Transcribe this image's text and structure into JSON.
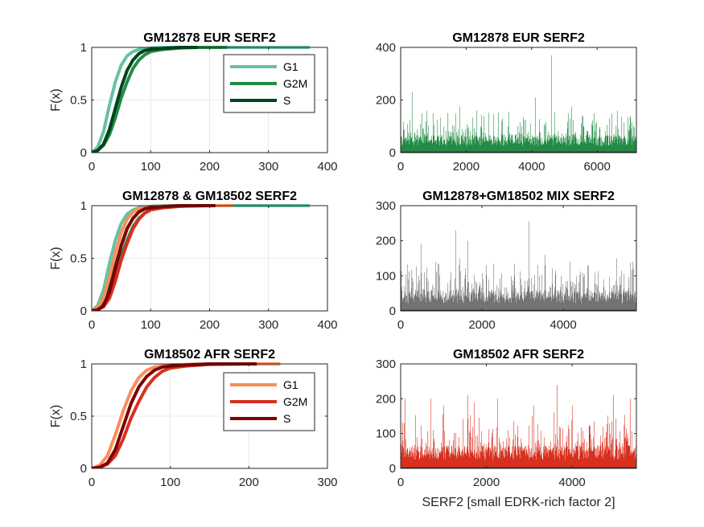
{
  "chart_data": [
    {
      "type": "line",
      "title": "GM12878 EUR SERF2",
      "xlabel": "",
      "ylabel": "F(x)",
      "xlim": [
        0,
        400
      ],
      "ylim": [
        0,
        1
      ],
      "xticks": [
        0,
        100,
        200,
        300,
        400
      ],
      "yticks": [
        0,
        0.5,
        1
      ],
      "ytick_labels": [
        "0",
        "0.5",
        "1"
      ],
      "grid": true,
      "legend": "top-right",
      "series": [
        {
          "name": "G1",
          "color": "#66c2a4",
          "x": [
            0,
            10,
            20,
            30,
            40,
            50,
            60,
            70,
            80,
            100,
            120,
            150,
            200,
            370
          ],
          "y": [
            0,
            0.05,
            0.2,
            0.45,
            0.67,
            0.83,
            0.92,
            0.96,
            0.98,
            0.995,
            1,
            1,
            1,
            1
          ]
        },
        {
          "name": "G2M",
          "color": "#238b45",
          "x": [
            0,
            10,
            20,
            30,
            40,
            50,
            60,
            70,
            80,
            90,
            100,
            120,
            150,
            180,
            230
          ],
          "y": [
            0,
            0.02,
            0.07,
            0.17,
            0.33,
            0.52,
            0.67,
            0.8,
            0.88,
            0.93,
            0.96,
            0.98,
            0.995,
            1,
            1
          ]
        },
        {
          "name": "S",
          "color": "#00441b",
          "x": [
            0,
            10,
            20,
            30,
            40,
            50,
            60,
            70,
            80,
            90,
            100,
            120,
            150,
            180
          ],
          "y": [
            0,
            0.02,
            0.08,
            0.22,
            0.42,
            0.62,
            0.78,
            0.88,
            0.94,
            0.97,
            0.98,
            0.99,
            1,
            1
          ]
        }
      ]
    },
    {
      "type": "bar",
      "title": "GM12878 EUR SERF2",
      "xlabel": "",
      "ylabel": "",
      "xlim": [
        0,
        7200
      ],
      "ylim": [
        0,
        400
      ],
      "xticks": [
        0,
        2000,
        4000,
        6000
      ],
      "yticks": [
        0,
        200,
        400
      ],
      "color": "#238b45",
      "n": 7200,
      "base_mean": 45,
      "spikes": [
        [
          0,
          400
        ],
        [
          350,
          230
        ],
        [
          650,
          150
        ],
        [
          1800,
          175
        ],
        [
          2300,
          160
        ],
        [
          3300,
          155
        ],
        [
          4100,
          210
        ],
        [
          4600,
          370
        ],
        [
          5100,
          150
        ],
        [
          5200,
          175
        ],
        [
          5900,
          150
        ],
        [
          6450,
          150
        ],
        [
          6600,
          160
        ],
        [
          7000,
          140
        ]
      ]
    },
    {
      "type": "line",
      "title": "GM12878 & GM18502 SERF2",
      "xlabel": "",
      "ylabel": "F(x)",
      "xlim": [
        0,
        400
      ],
      "ylim": [
        0,
        1
      ],
      "xticks": [
        0,
        100,
        200,
        300,
        400
      ],
      "yticks": [
        0,
        0.5,
        1
      ],
      "ytick_labels": [
        "0",
        "0.5",
        "1"
      ],
      "grid": true,
      "series": [
        {
          "color": "#66c2a4",
          "x": [
            0,
            10,
            20,
            30,
            40,
            50,
            60,
            70,
            80,
            100,
            120,
            150,
            200,
            370
          ],
          "y": [
            0,
            0.05,
            0.2,
            0.45,
            0.67,
            0.83,
            0.92,
            0.96,
            0.98,
            0.995,
            1,
            1,
            1,
            1
          ]
        },
        {
          "color": "#238b45",
          "x": [
            0,
            10,
            20,
            30,
            40,
            50,
            60,
            70,
            80,
            90,
            100,
            120,
            150,
            180,
            230
          ],
          "y": [
            0,
            0.02,
            0.07,
            0.17,
            0.33,
            0.52,
            0.67,
            0.8,
            0.88,
            0.93,
            0.96,
            0.98,
            0.995,
            1,
            1
          ]
        },
        {
          "color": "#00441b",
          "x": [
            0,
            10,
            20,
            30,
            40,
            50,
            60,
            70,
            80,
            90,
            100,
            120,
            150,
            180
          ],
          "y": [
            0,
            0.02,
            0.08,
            0.22,
            0.42,
            0.62,
            0.78,
            0.88,
            0.94,
            0.97,
            0.98,
            0.99,
            1,
            1
          ]
        },
        {
          "color": "#fc8d59",
          "x": [
            0,
            10,
            20,
            30,
            40,
            50,
            60,
            70,
            80,
            100,
            120,
            150,
            200,
            240
          ],
          "y": [
            0,
            0.03,
            0.12,
            0.32,
            0.55,
            0.74,
            0.87,
            0.94,
            0.97,
            0.99,
            0.995,
            1,
            1,
            1
          ]
        },
        {
          "color": "#d7301f",
          "x": [
            0,
            10,
            20,
            30,
            40,
            50,
            60,
            70,
            80,
            90,
            100,
            120,
            150,
            200
          ],
          "y": [
            0,
            0.01,
            0.04,
            0.12,
            0.28,
            0.48,
            0.64,
            0.78,
            0.87,
            0.93,
            0.96,
            0.98,
            0.995,
            1
          ]
        },
        {
          "color": "#7f0000",
          "x": [
            0,
            10,
            20,
            30,
            40,
            50,
            60,
            70,
            80,
            90,
            100,
            120,
            150,
            210
          ],
          "y": [
            0,
            0.01,
            0.05,
            0.18,
            0.4,
            0.62,
            0.78,
            0.88,
            0.94,
            0.97,
            0.98,
            0.99,
            1,
            1
          ]
        }
      ]
    },
    {
      "type": "bar",
      "title": "GM12878+GM18502 MIX SERF2",
      "xlabel": "",
      "ylabel": "",
      "xlim": [
        0,
        5800
      ],
      "ylim": [
        0,
        300
      ],
      "xticks": [
        0,
        2000,
        4000
      ],
      "yticks": [
        0,
        100,
        200,
        300
      ],
      "color": "#737373",
      "n": 5800,
      "base_mean": 40,
      "spikes": [
        [
          0,
          160
        ],
        [
          500,
          190
        ],
        [
          850,
          140
        ],
        [
          1350,
          230
        ],
        [
          1450,
          150
        ],
        [
          1650,
          200
        ],
        [
          2100,
          130
        ],
        [
          2800,
          135
        ],
        [
          3150,
          255
        ],
        [
          3550,
          160
        ],
        [
          4150,
          140
        ],
        [
          4600,
          130
        ],
        [
          5300,
          150
        ],
        [
          5700,
          140
        ]
      ]
    },
    {
      "type": "line",
      "title": "GM18502 AFR SERF2",
      "xlabel": "",
      "ylabel": "F(x)",
      "xlim": [
        0,
        300
      ],
      "ylim": [
        0,
        1
      ],
      "xticks": [
        0,
        100,
        200,
        300
      ],
      "yticks": [
        0,
        0.5,
        1
      ],
      "ytick_labels": [
        "0",
        "0.5",
        "1"
      ],
      "grid": true,
      "legend": "top-right",
      "series": [
        {
          "name": "G1",
          "color": "#fc8d59",
          "x": [
            0,
            10,
            20,
            30,
            40,
            50,
            60,
            70,
            80,
            100,
            120,
            150,
            200,
            240
          ],
          "y": [
            0,
            0.03,
            0.12,
            0.32,
            0.55,
            0.74,
            0.87,
            0.94,
            0.97,
            0.99,
            0.995,
            1,
            1,
            1
          ]
        },
        {
          "name": "G2M",
          "color": "#d7301f",
          "x": [
            0,
            10,
            20,
            30,
            40,
            50,
            60,
            70,
            80,
            90,
            100,
            120,
            150,
            200
          ],
          "y": [
            0,
            0.01,
            0.04,
            0.12,
            0.28,
            0.48,
            0.64,
            0.78,
            0.87,
            0.93,
            0.96,
            0.98,
            0.995,
            1
          ]
        },
        {
          "name": "S",
          "color": "#7f0000",
          "x": [
            0,
            10,
            20,
            30,
            40,
            50,
            60,
            70,
            80,
            90,
            100,
            120,
            150,
            210
          ],
          "y": [
            0,
            0.01,
            0.05,
            0.18,
            0.4,
            0.62,
            0.78,
            0.88,
            0.94,
            0.97,
            0.98,
            0.99,
            1,
            1
          ]
        }
      ]
    },
    {
      "type": "bar",
      "title": "GM18502 AFR SERF2",
      "xlabel": "SERF2 [small EDRK-rich factor 2]",
      "ylabel": "",
      "xlim": [
        0,
        5500
      ],
      "ylim": [
        0,
        300
      ],
      "xticks": [
        0,
        2000,
        4000
      ],
      "yticks": [
        0,
        100,
        200,
        300
      ],
      "color": "#d7301f",
      "n": 5500,
      "base_mean": 45,
      "spikes": [
        [
          0,
          220
        ],
        [
          100,
          200
        ],
        [
          700,
          200
        ],
        [
          1000,
          180
        ],
        [
          1550,
          210
        ],
        [
          1700,
          190
        ],
        [
          2250,
          200
        ],
        [
          3100,
          180
        ],
        [
          3650,
          240
        ],
        [
          4000,
          180
        ],
        [
          4950,
          210
        ],
        [
          5350,
          200
        ]
      ]
    }
  ]
}
